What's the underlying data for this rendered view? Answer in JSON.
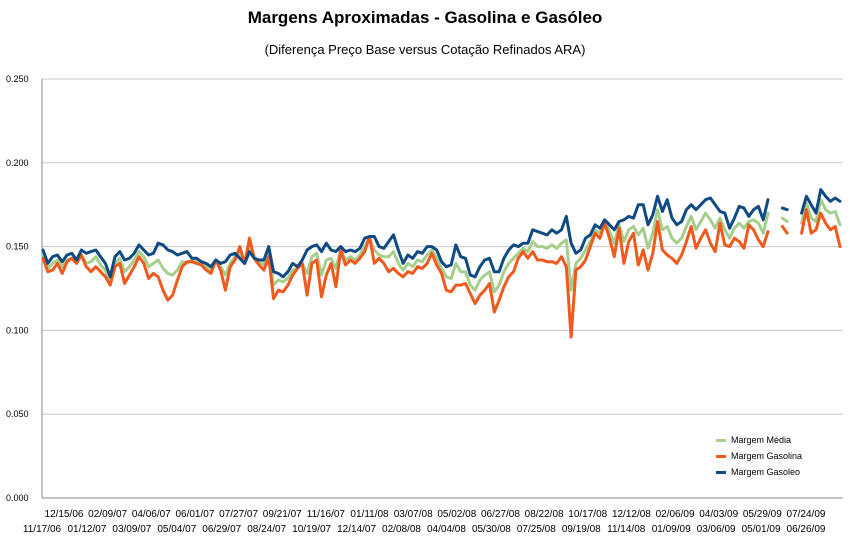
{
  "chart_data": {
    "type": "line",
    "title": "Margens Aproximadas - Gasolina e Gasóleo",
    "subtitle": "(Diferença Preço Base versus Cotação Refinados ARA)",
    "xlabel": "",
    "ylabel": "",
    "ylim": [
      0,
      0.25
    ],
    "y_ticks": [
      "0.000",
      "0.050",
      "0.100",
      "0.150",
      "0.200",
      "0.250"
    ],
    "grid": true,
    "legend_position": "bottom-right",
    "x_tick_labels_row1": [
      "12/15/06",
      "02/09/07",
      "04/06/07",
      "06/01/07",
      "07/27/07",
      "09/21/07",
      "11/16/07",
      "01/11/08",
      "03/07/08",
      "05/02/08",
      "06/27/08",
      "08/22/08",
      "10/17/08",
      "12/12/08",
      "02/06/09",
      "04/03/09",
      "05/29/09",
      "07/24/09"
    ],
    "x_tick_labels_row2": [
      "11/17/06",
      "01/12/07",
      "03/09/07",
      "05/04/07",
      "06/29/07",
      "08/24/07",
      "10/19/07",
      "12/14/07",
      "02/08/08",
      "04/04/08",
      "05/30/08",
      "07/25/08",
      "09/19/08",
      "11/14/08",
      "01/09/09",
      "03/06/09",
      "05/01/09",
      "06/26/09"
    ],
    "series": [
      {
        "name": "Margem Média",
        "color": "#a6cf8c",
        "values": [
          0.145,
          0.137,
          0.14,
          0.142,
          0.138,
          0.142,
          0.143,
          0.141,
          0.145,
          0.14,
          0.141,
          0.144,
          0.139,
          0.136,
          0.128,
          0.14,
          0.143,
          0.135,
          0.138,
          0.142,
          0.147,
          0.144,
          0.138,
          0.14,
          0.142,
          0.137,
          0.134,
          0.133,
          0.136,
          0.141,
          0.14,
          0.142,
          0.141,
          0.14,
          0.138,
          0.136,
          0.142,
          0.138,
          0.133,
          0.14,
          0.144,
          0.146,
          0.14,
          0.15,
          0.143,
          0.141,
          0.139,
          0.147,
          0.127,
          0.13,
          0.129,
          0.131,
          0.136,
          0.137,
          0.14,
          0.134,
          0.144,
          0.146,
          0.133,
          0.142,
          0.143,
          0.137,
          0.148,
          0.142,
          0.144,
          0.142,
          0.145,
          0.15,
          0.155,
          0.148,
          0.145,
          0.144,
          0.144,
          0.147,
          0.14,
          0.136,
          0.14,
          0.138,
          0.142,
          0.141,
          0.145,
          0.148,
          0.143,
          0.137,
          0.132,
          0.131,
          0.14,
          0.135,
          0.135,
          0.127,
          0.124,
          0.13,
          0.133,
          0.135,
          0.123,
          0.127,
          0.135,
          0.14,
          0.143,
          0.146,
          0.149,
          0.147,
          0.153,
          0.15,
          0.15,
          0.149,
          0.151,
          0.149,
          0.152,
          0.154,
          0.124,
          0.14,
          0.143,
          0.148,
          0.153,
          0.16,
          0.158,
          0.165,
          0.159,
          0.152,
          0.163,
          0.153,
          0.16,
          0.162,
          0.157,
          0.161,
          0.149,
          0.158,
          0.172,
          0.16,
          0.162,
          0.155,
          0.152,
          0.155,
          0.162,
          0.168,
          0.16,
          0.165,
          0.17,
          0.166,
          0.161,
          0.167,
          0.16,
          0.155,
          0.161,
          0.164,
          0.161,
          0.165,
          0.166,
          0.164,
          0.158,
          0.17,
          null,
          null,
          0.167,
          0.165,
          null,
          null,
          0.164,
          0.176,
          0.167,
          0.165,
          0.178,
          0.172,
          0.17,
          0.171,
          0.163
        ]
      },
      {
        "name": "Margem Gasolina",
        "color": "#f05a1e",
        "values": [
          0.143,
          0.135,
          0.136,
          0.14,
          0.134,
          0.141,
          0.143,
          0.14,
          0.145,
          0.138,
          0.135,
          0.138,
          0.135,
          0.132,
          0.127,
          0.138,
          0.14,
          0.128,
          0.133,
          0.138,
          0.144,
          0.14,
          0.131,
          0.134,
          0.132,
          0.124,
          0.118,
          0.121,
          0.13,
          0.138,
          0.141,
          0.141,
          0.14,
          0.139,
          0.136,
          0.134,
          0.142,
          0.136,
          0.124,
          0.138,
          0.142,
          0.15,
          0.14,
          0.155,
          0.143,
          0.139,
          0.136,
          0.144,
          0.119,
          0.124,
          0.123,
          0.127,
          0.133,
          0.137,
          0.14,
          0.121,
          0.14,
          0.142,
          0.12,
          0.133,
          0.14,
          0.126,
          0.148,
          0.139,
          0.142,
          0.14,
          0.143,
          0.147,
          0.156,
          0.14,
          0.143,
          0.14,
          0.135,
          0.137,
          0.134,
          0.132,
          0.135,
          0.134,
          0.138,
          0.137,
          0.14,
          0.146,
          0.139,
          0.134,
          0.124,
          0.123,
          0.127,
          0.127,
          0.128,
          0.122,
          0.116,
          0.121,
          0.124,
          0.128,
          0.111,
          0.118,
          0.126,
          0.132,
          0.135,
          0.143,
          0.147,
          0.143,
          0.147,
          0.142,
          0.142,
          0.141,
          0.141,
          0.14,
          0.144,
          0.138,
          0.096,
          0.136,
          0.138,
          0.142,
          0.15,
          0.158,
          0.155,
          0.164,
          0.155,
          0.144,
          0.161,
          0.14,
          0.153,
          0.158,
          0.139,
          0.148,
          0.136,
          0.146,
          0.165,
          0.148,
          0.145,
          0.143,
          0.14,
          0.145,
          0.153,
          0.162,
          0.149,
          0.155,
          0.16,
          0.152,
          0.147,
          0.164,
          0.151,
          0.15,
          0.155,
          0.153,
          0.149,
          0.163,
          0.16,
          0.154,
          0.15,
          0.159,
          null,
          null,
          0.162,
          0.158,
          null,
          null,
          0.158,
          0.172,
          0.158,
          0.16,
          0.17,
          0.164,
          0.16,
          0.162,
          0.15
        ]
      },
      {
        "name": "Margem Gasoleo",
        "color": "#0f4a82",
        "values": [
          0.148,
          0.14,
          0.144,
          0.145,
          0.141,
          0.145,
          0.146,
          0.142,
          0.148,
          0.146,
          0.147,
          0.148,
          0.144,
          0.14,
          0.132,
          0.144,
          0.147,
          0.142,
          0.143,
          0.146,
          0.151,
          0.148,
          0.145,
          0.146,
          0.152,
          0.151,
          0.148,
          0.147,
          0.145,
          0.146,
          0.147,
          0.143,
          0.143,
          0.141,
          0.14,
          0.138,
          0.142,
          0.14,
          0.141,
          0.145,
          0.146,
          0.143,
          0.14,
          0.147,
          0.143,
          0.142,
          0.142,
          0.15,
          0.135,
          0.134,
          0.132,
          0.135,
          0.14,
          0.138,
          0.142,
          0.148,
          0.15,
          0.151,
          0.147,
          0.152,
          0.148,
          0.147,
          0.15,
          0.147,
          0.148,
          0.147,
          0.149,
          0.155,
          0.156,
          0.156,
          0.15,
          0.149,
          0.153,
          0.157,
          0.148,
          0.14,
          0.145,
          0.143,
          0.147,
          0.146,
          0.15,
          0.15,
          0.148,
          0.141,
          0.138,
          0.139,
          0.151,
          0.144,
          0.143,
          0.133,
          0.132,
          0.138,
          0.142,
          0.143,
          0.135,
          0.135,
          0.143,
          0.148,
          0.151,
          0.15,
          0.152,
          0.152,
          0.16,
          0.159,
          0.158,
          0.157,
          0.16,
          0.158,
          0.16,
          0.168,
          0.152,
          0.146,
          0.148,
          0.155,
          0.157,
          0.163,
          0.161,
          0.166,
          0.163,
          0.16,
          0.165,
          0.166,
          0.168,
          0.167,
          0.175,
          0.175,
          0.163,
          0.169,
          0.18,
          0.171,
          0.178,
          0.167,
          0.163,
          0.165,
          0.172,
          0.175,
          0.172,
          0.175,
          0.178,
          0.179,
          0.175,
          0.171,
          0.17,
          0.161,
          0.167,
          0.174,
          0.173,
          0.168,
          0.172,
          0.174,
          0.166,
          0.178,
          null,
          null,
          0.173,
          0.172,
          null,
          null,
          0.17,
          0.18,
          0.175,
          0.17,
          0.184,
          0.18,
          0.177,
          0.179,
          0.177
        ]
      }
    ]
  }
}
